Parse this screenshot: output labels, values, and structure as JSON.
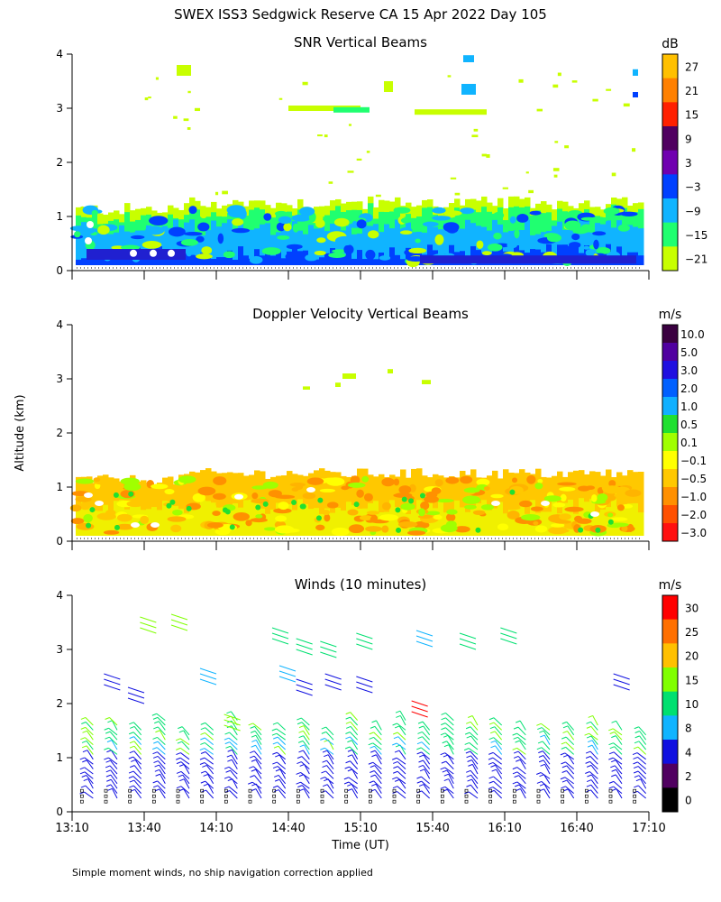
{
  "header": {
    "title": "SWEX ISS3 Sedgwick Reserve CA  15 Apr 2022 Day 105",
    "ylabel": "Altitude (km)",
    "xlabel": "Time (UT)",
    "footnote": "Simple moment winds, no ship navigation correction applied"
  },
  "chart_data": [
    {
      "type": "heatmap",
      "title": "SNR Vertical Beams",
      "xlabel": "Time (UT)",
      "ylabel": "Altitude (km)",
      "xlim": [
        "13:10",
        "17:10"
      ],
      "ylim": [
        0,
        4
      ],
      "y_ticks": [
        "0",
        "1",
        "2",
        "3",
        "4"
      ],
      "colorbar": {
        "unit": "dB",
        "labels": [
          "27",
          "21",
          "15",
          "9",
          "3",
          "−3",
          "−9",
          "−15",
          "−21"
        ],
        "colors": [
          "#ffc000",
          "#ff8000",
          "#ff2000",
          "#500060",
          "#7000b0",
          "#0040ff",
          "#10b4ff",
          "#20ff70",
          "#c8ff00"
        ]
      },
      "layers": [
        {
          "name": "low_snr_fill",
          "color": "#c8ff00"
        },
        {
          "name": "mid_snr",
          "color": "#20ff70"
        },
        {
          "name": "high_snr",
          "color": "#10b4ff"
        },
        {
          "name": "max_snr",
          "color": "#0040ff"
        }
      ],
      "boundary_layer_top_km": 1.25
    },
    {
      "type": "heatmap",
      "title": "Doppler Velocity Vertical Beams",
      "xlabel": "Time (UT)",
      "ylabel": "Altitude (km)",
      "xlim": [
        "13:10",
        "17:10"
      ],
      "ylim": [
        0,
        4
      ],
      "y_ticks": [
        "0",
        "1",
        "2",
        "3",
        "4"
      ],
      "colorbar": {
        "unit": "m/s",
        "labels": [
          "10.0",
          "5.0",
          "3.0",
          "2.0",
          "1.0",
          "0.5",
          "0.1",
          "−0.1",
          "−0.5",
          "−1.0",
          "−2.0",
          "−3.0"
        ],
        "colors": [
          "#3a0040",
          "#5000a0",
          "#2010e0",
          "#0060ff",
          "#10b0ff",
          "#20e030",
          "#a0ff00",
          "#ffff00",
          "#ffc800",
          "#ff9000",
          "#ff5000",
          "#ff1010"
        ]
      },
      "boundary_layer_top_km": 1.25
    },
    {
      "type": "scatter",
      "title": "Winds (10 minutes)",
      "xlabel": "Time (UT)",
      "ylabel": "Altitude (km)",
      "xlim": [
        "13:10",
        "17:10"
      ],
      "ylim": [
        0,
        4
      ],
      "y_ticks": [
        "0",
        "1",
        "2",
        "3",
        "4"
      ],
      "x_ticks": [
        "13:10",
        "13:40",
        "14:10",
        "14:40",
        "15:10",
        "15:40",
        "16:10",
        "16:40",
        "17:10"
      ],
      "colorbar": {
        "unit": "m/s",
        "labels": [
          "30",
          "25",
          "20",
          "15",
          "10",
          "8",
          "4",
          "2",
          "0"
        ],
        "colors": [
          "#ff0000",
          "#ff7000",
          "#ffc000",
          "#80ff00",
          "#00e070",
          "#10b4ff",
          "#1010e0",
          "#500060",
          "#000000"
        ]
      },
      "profile_interval_minutes": 10,
      "profiles_count": 24
    }
  ]
}
